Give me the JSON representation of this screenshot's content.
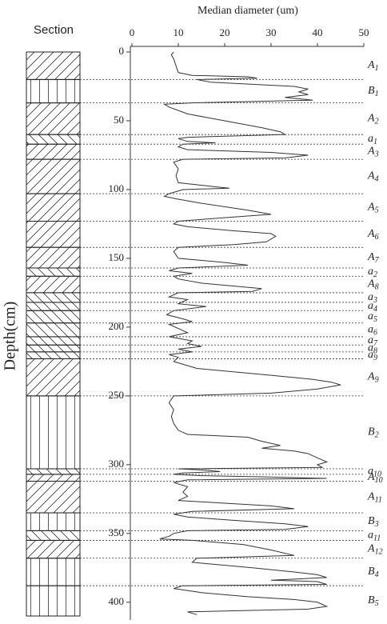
{
  "chart_data": {
    "type": "line",
    "section_title": "Section",
    "xlabel": "Median diameter (um)",
    "ylabel": "Depth(cm)",
    "xlim": [
      0,
      50
    ],
    "xticks": [
      0,
      10,
      20,
      30,
      40,
      50
    ],
    "ylim": [
      0,
      410
    ],
    "yticks": [
      0,
      50,
      100,
      150,
      200,
      250,
      300,
      350,
      400
    ],
    "inverted_y": true,
    "boundaries": [
      0,
      20,
      37,
      60,
      67,
      78,
      103,
      123,
      142,
      157,
      163,
      175,
      182,
      188,
      197,
      207,
      213,
      218,
      223,
      250,
      303,
      307,
      312,
      335,
      348,
      355,
      368,
      388,
      410
    ],
    "units": [
      {
        "name": "A",
        "sub": "1",
        "pattern": "diagonal"
      },
      {
        "name": "B",
        "sub": "1",
        "pattern": "vertical"
      },
      {
        "name": "A",
        "sub": "2",
        "pattern": "diagonal"
      },
      {
        "name": "a",
        "sub": "1",
        "pattern": "backdiagonal"
      },
      {
        "name": "A",
        "sub": "3",
        "pattern": "diagonal"
      },
      {
        "name": "A",
        "sub": "4",
        "pattern": "diagonal"
      },
      {
        "name": "A",
        "sub": "5",
        "pattern": "diagonal"
      },
      {
        "name": "A",
        "sub": "6",
        "pattern": "diagonal"
      },
      {
        "name": "A",
        "sub": "7",
        "pattern": "diagonal"
      },
      {
        "name": "a",
        "sub": "2",
        "pattern": "backdiagonal"
      },
      {
        "name": "A",
        "sub": "8",
        "pattern": "diagonal"
      },
      {
        "name": "a",
        "sub": "3",
        "pattern": "backdiagonal"
      },
      {
        "name": "a",
        "sub": "4",
        "pattern": "backdiagonal"
      },
      {
        "name": "a",
        "sub": "5",
        "pattern": "backdiagonal"
      },
      {
        "name": "a",
        "sub": "6",
        "pattern": "backdiagonal"
      },
      {
        "name": "a",
        "sub": "7",
        "pattern": "backdiagonal"
      },
      {
        "name": "a",
        "sub": "8",
        "pattern": "backdiagonal"
      },
      {
        "name": "a",
        "sub": "9",
        "pattern": "backdiagonal"
      },
      {
        "name": "A",
        "sub": "9",
        "pattern": "diagonal"
      },
      {
        "name": "B",
        "sub": "2",
        "pattern": "vertical"
      },
      {
        "name": "a",
        "sub": "10",
        "pattern": "backdiagonal"
      },
      {
        "name": "A",
        "sub": "10",
        "pattern": "diagonal"
      },
      {
        "name": "A",
        "sub": "11",
        "pattern": "diagonal"
      },
      {
        "name": "B",
        "sub": "3",
        "pattern": "vertical"
      },
      {
        "name": "a",
        "sub": "11",
        "pattern": "backdiagonal"
      },
      {
        "name": "A",
        "sub": "12",
        "pattern": "diagonal"
      },
      {
        "name": "B",
        "sub": "4",
        "pattern": "vertical"
      },
      {
        "name": "B",
        "sub": "5",
        "pattern": "vertical"
      }
    ],
    "series": [
      {
        "color": "#333333",
        "depth": [
          0,
          2,
          5,
          10,
          15,
          17,
          18,
          19,
          20,
          22,
          25,
          27,
          29,
          31,
          33,
          35,
          37,
          38,
          40,
          45,
          50,
          55,
          58,
          60,
          62,
          63,
          65,
          66,
          67,
          69,
          71,
          73,
          75,
          77,
          78,
          80,
          85,
          90,
          95,
          98,
          99,
          100,
          103,
          105,
          107,
          110,
          115,
          118,
          120,
          123,
          125,
          127,
          130,
          132,
          134,
          138,
          140,
          142,
          145,
          150,
          153,
          155,
          157,
          159,
          161,
          163,
          165,
          168,
          172,
          174,
          175,
          178,
          180,
          183,
          185,
          188,
          191,
          194,
          196,
          198,
          201,
          204,
          207,
          210,
          212,
          214,
          216,
          218,
          220,
          222,
          225,
          230,
          235,
          238,
          240,
          242,
          245,
          248,
          250,
          255,
          260,
          265,
          270,
          275,
          278,
          280,
          283,
          286,
          288,
          290,
          292,
          295,
          298,
          300,
          302,
          303,
          304,
          305,
          306,
          307,
          308,
          309,
          310,
          311,
          313,
          316,
          320,
          323,
          326,
          328,
          330,
          332,
          334,
          336,
          338,
          340,
          343,
          345,
          347,
          348,
          350,
          352,
          354,
          355,
          358,
          362,
          366,
          368,
          371,
          375,
          378,
          380,
          382,
          384,
          385,
          387,
          388,
          390,
          393,
          396,
          398,
          400,
          403,
          405,
          407,
          409
        ],
        "values": [
          9,
          8.5,
          9,
          9.5,
          10,
          13,
          25,
          27,
          14,
          17,
          35,
          38,
          36,
          38,
          33,
          39,
          13,
          7,
          8,
          12,
          20,
          28,
          32,
          33,
          12,
          10,
          12,
          18,
          11,
          10,
          12,
          30,
          38,
          33,
          11,
          9,
          10,
          9.5,
          10,
          18,
          21,
          11,
          8,
          7,
          10,
          15,
          25,
          30,
          22,
          10,
          9,
          12,
          22,
          30,
          31,
          29,
          22,
          10,
          9,
          10,
          20,
          25,
          10,
          8,
          13,
          9,
          10,
          15,
          28,
          26,
          10,
          8,
          12,
          10,
          16,
          9,
          7.5,
          11,
          13,
          8,
          10,
          12,
          8,
          13,
          12,
          15,
          10,
          13,
          8,
          10,
          9,
          14,
          30,
          39,
          43,
          45,
          40,
          30,
          9,
          8,
          9,
          8.5,
          9,
          10,
          12,
          25,
          28,
          32,
          28,
          35,
          38,
          40,
          42,
          40,
          41,
          10,
          16,
          19,
          11,
          9,
          15,
          30,
          42,
          12,
          9,
          12,
          11,
          12,
          10,
          20,
          30,
          35,
          13,
          9,
          12,
          20,
          33,
          38,
          33,
          12,
          9,
          8,
          6,
          13,
          24,
          30,
          35,
          14,
          13,
          26,
          35,
          40,
          42,
          30,
          40,
          42,
          11,
          9,
          15,
          25,
          35,
          40,
          42,
          38,
          12,
          14
        ]
      }
    ]
  }
}
